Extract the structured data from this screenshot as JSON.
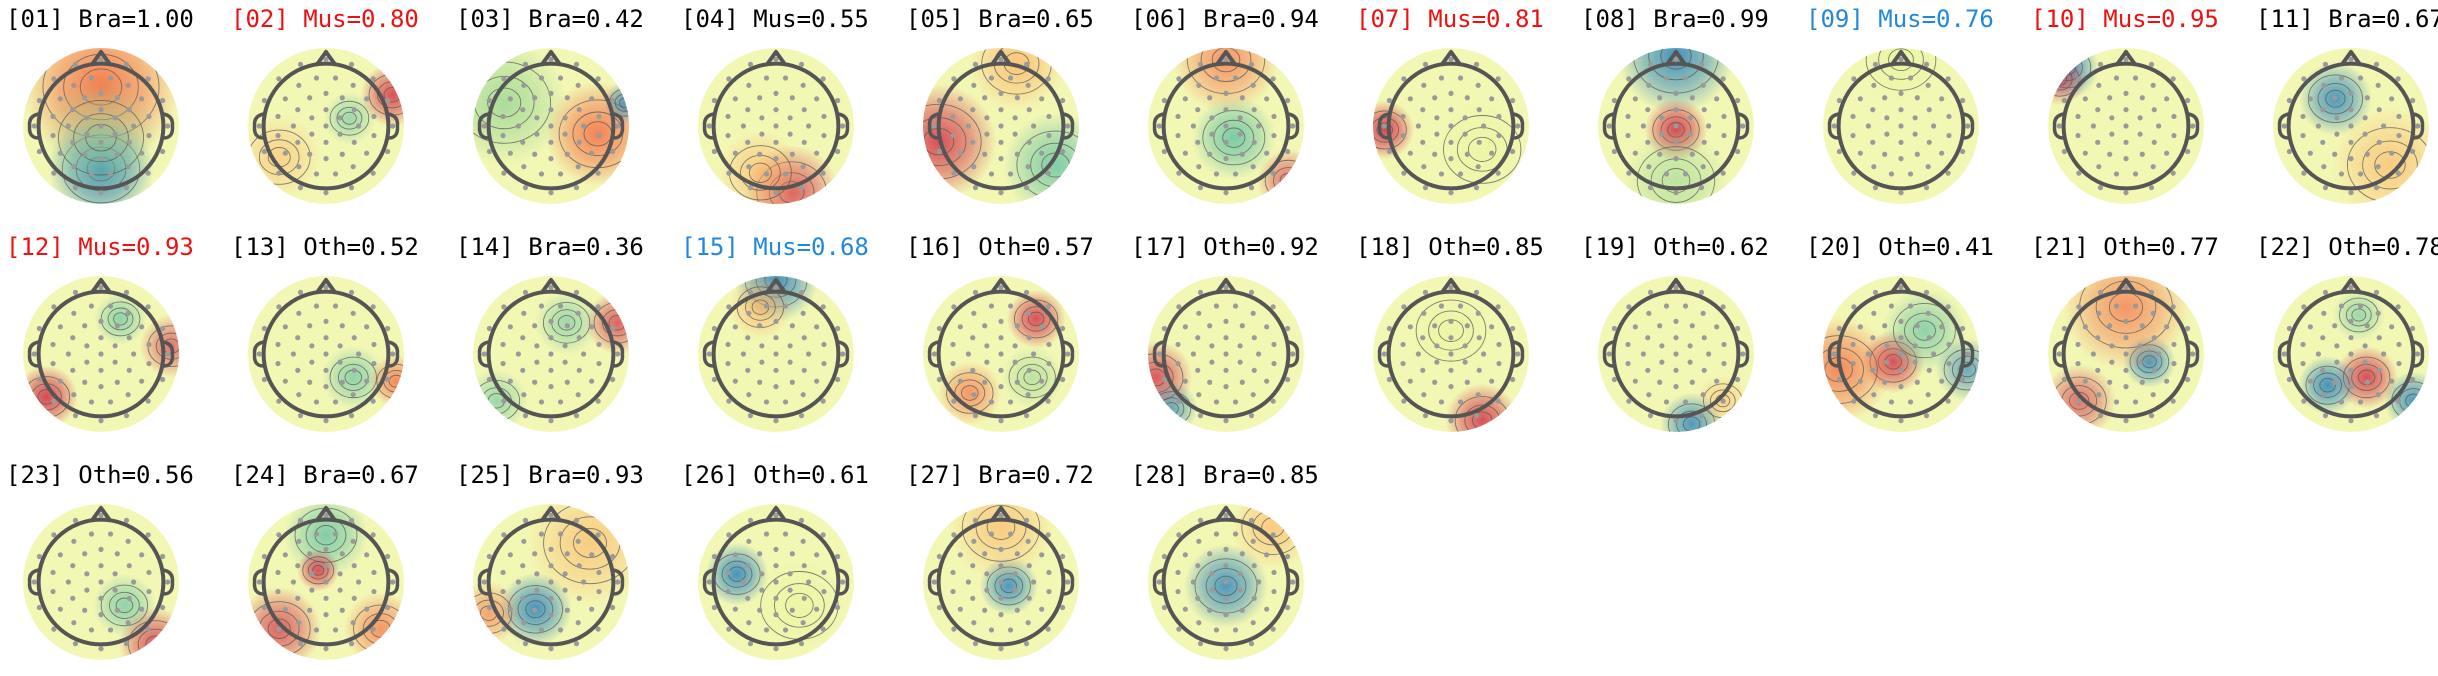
{
  "colors": {
    "default_label": "#000000",
    "highlight_red": "#ee1111",
    "highlight_blue": "#2288dd",
    "head_outline": "#555555",
    "electrode": "#9a9a9a",
    "contour": "#555555"
  },
  "components": [
    {
      "label": "[01] Bra=1.00",
      "category": "Bra",
      "score": 1.0,
      "highlight": "none",
      "map": [
        {
          "dx": 0,
          "dy": -0.5,
          "r": 0.75,
          "c": "#f46d43",
          "o": 0.9
        },
        {
          "dx": 0,
          "dy": 0.55,
          "r": 0.5,
          "c": "#3288bd",
          "o": 0.95
        },
        {
          "dx": 0,
          "dy": 0.15,
          "r": 0.55,
          "c": "#99d594",
          "o": 0.6
        }
      ]
    },
    {
      "label": "[02] Mus=0.80",
      "category": "Mus",
      "score": 0.8,
      "highlight": "red",
      "map": [
        {
          "dx": 0.85,
          "dy": -0.4,
          "r": 0.3,
          "c": "#d53e4f",
          "o": 0.9
        },
        {
          "dx": 0.3,
          "dy": -0.1,
          "r": 0.25,
          "c": "#66c2a5",
          "o": 0.6
        },
        {
          "dx": -0.6,
          "dy": 0.4,
          "r": 0.4,
          "c": "#fdae61",
          "o": 0.5
        }
      ]
    },
    {
      "label": "[03] Bra=0.42",
      "category": "Bra",
      "score": 0.42,
      "highlight": "none",
      "map": [
        {
          "dx": -0.6,
          "dy": -0.3,
          "r": 0.6,
          "c": "#99d594",
          "o": 0.8
        },
        {
          "dx": 0.6,
          "dy": 0.1,
          "r": 0.5,
          "c": "#f46d43",
          "o": 0.85
        },
        {
          "dx": 0.95,
          "dy": -0.3,
          "r": 0.2,
          "c": "#3288bd",
          "o": 0.8
        }
      ]
    },
    {
      "label": "[04] Mus=0.55",
      "category": "Mus",
      "score": 0.55,
      "highlight": "none",
      "map": [
        {
          "dx": 0.2,
          "dy": 0.85,
          "r": 0.45,
          "c": "#d53e4f",
          "o": 0.8
        },
        {
          "dx": -0.2,
          "dy": 0.6,
          "r": 0.4,
          "c": "#fdae61",
          "o": 0.6
        }
      ]
    },
    {
      "label": "[05] Bra=0.65",
      "category": "Bra",
      "score": 0.65,
      "highlight": "none",
      "map": [
        {
          "dx": -0.8,
          "dy": 0.2,
          "r": 0.55,
          "c": "#d53e4f",
          "o": 0.9
        },
        {
          "dx": 0.7,
          "dy": 0.5,
          "r": 0.5,
          "c": "#66c2a5",
          "o": 0.8
        },
        {
          "dx": 0.2,
          "dy": -0.8,
          "r": 0.45,
          "c": "#fdae61",
          "o": 0.7
        }
      ]
    },
    {
      "label": "[06] Bra=0.94",
      "category": "Bra",
      "score": 0.94,
      "highlight": "none",
      "map": [
        {
          "dx": 0.1,
          "dy": 0.15,
          "r": 0.4,
          "c": "#66c2a5",
          "o": 0.85
        },
        {
          "dx": 0,
          "dy": -0.85,
          "r": 0.5,
          "c": "#f46d43",
          "o": 0.7
        },
        {
          "dx": 0.8,
          "dy": 0.7,
          "r": 0.3,
          "c": "#d53e4f",
          "o": 0.7
        }
      ]
    },
    {
      "label": "[07] Mus=0.81",
      "category": "Mus",
      "score": 0.81,
      "highlight": "red",
      "map": [
        {
          "dx": -0.85,
          "dy": 0.05,
          "r": 0.28,
          "c": "#d53e4f",
          "o": 0.95
        },
        {
          "dx": 0.4,
          "dy": 0.3,
          "r": 0.5,
          "c": "#e6f598",
          "o": 0.5
        }
      ]
    },
    {
      "label": "[08] Bra=0.99",
      "category": "Bra",
      "score": 0.99,
      "highlight": "none",
      "map": [
        {
          "dx": 0,
          "dy": -0.9,
          "r": 0.55,
          "c": "#3288bd",
          "o": 0.9
        },
        {
          "dx": 0,
          "dy": 0.05,
          "r": 0.3,
          "c": "#d53e4f",
          "o": 0.95
        },
        {
          "dx": 0,
          "dy": 0.7,
          "r": 0.5,
          "c": "#99d594",
          "o": 0.6
        }
      ]
    },
    {
      "label": "[09] Mus=0.76",
      "category": "Mus",
      "score": 0.76,
      "highlight": "blue",
      "map": [
        {
          "dx": 0,
          "dy": -0.85,
          "r": 0.45,
          "c": "#e6f598",
          "o": 0.6
        }
      ]
    },
    {
      "label": "[10] Mus=0.95",
      "category": "Mus",
      "score": 0.95,
      "highlight": "red",
      "map": [
        {
          "dx": -0.75,
          "dy": -0.75,
          "r": 0.3,
          "c": "#3288bd",
          "o": 0.9
        },
        {
          "dx": -0.85,
          "dy": -0.6,
          "r": 0.25,
          "c": "#d53e4f",
          "o": 0.7
        }
      ]
    },
    {
      "label": "[11] Bra=0.67",
      "category": "Bra",
      "score": 0.67,
      "highlight": "none",
      "map": [
        {
          "dx": -0.2,
          "dy": -0.35,
          "r": 0.35,
          "c": "#3288bd",
          "o": 0.85
        },
        {
          "dx": 0.5,
          "dy": 0.5,
          "r": 0.55,
          "c": "#fdae61",
          "o": 0.6
        }
      ]
    },
    {
      "label": "[12] Mus=0.93",
      "category": "Mus",
      "score": 0.93,
      "highlight": "red",
      "map": [
        {
          "dx": -0.7,
          "dy": 0.55,
          "r": 0.3,
          "c": "#d53e4f",
          "o": 0.95
        },
        {
          "dx": 0.25,
          "dy": -0.45,
          "r": 0.25,
          "c": "#66c2a5",
          "o": 0.7
        },
        {
          "dx": 0.9,
          "dy": -0.1,
          "r": 0.3,
          "c": "#d53e4f",
          "o": 0.7
        }
      ]
    },
    {
      "label": "[13] Oth=0.52",
      "category": "Oth",
      "score": 0.52,
      "highlight": "none",
      "map": [
        {
          "dx": 0.35,
          "dy": 0.3,
          "r": 0.3,
          "c": "#66c2a5",
          "o": 0.7
        },
        {
          "dx": 0.9,
          "dy": 0.35,
          "r": 0.25,
          "c": "#f46d43",
          "o": 0.8
        }
      ]
    },
    {
      "label": "[14] Bra=0.36",
      "category": "Bra",
      "score": 0.36,
      "highlight": "none",
      "map": [
        {
          "dx": 0.2,
          "dy": -0.4,
          "r": 0.3,
          "c": "#66c2a5",
          "o": 0.6
        },
        {
          "dx": 0.85,
          "dy": -0.4,
          "r": 0.3,
          "c": "#d53e4f",
          "o": 0.8
        },
        {
          "dx": -0.7,
          "dy": 0.6,
          "r": 0.3,
          "c": "#66c2a5",
          "o": 0.6
        }
      ]
    },
    {
      "label": "[15] Mus=0.68",
      "category": "Mus",
      "score": 0.68,
      "highlight": "blue",
      "map": [
        {
          "dx": 0,
          "dy": -0.95,
          "r": 0.4,
          "c": "#3288bd",
          "o": 0.9
        },
        {
          "dx": -0.2,
          "dy": -0.6,
          "r": 0.3,
          "c": "#fdae61",
          "o": 0.7
        }
      ]
    },
    {
      "label": "[16] Oth=0.57",
      "category": "Oth",
      "score": 0.57,
      "highlight": "none",
      "map": [
        {
          "dx": 0.45,
          "dy": -0.45,
          "r": 0.28,
          "c": "#d53e4f",
          "o": 0.9
        },
        {
          "dx": -0.4,
          "dy": 0.5,
          "r": 0.3,
          "c": "#f46d43",
          "o": 0.7
        },
        {
          "dx": 0.4,
          "dy": 0.3,
          "r": 0.3,
          "c": "#99d594",
          "o": 0.6
        }
      ]
    },
    {
      "label": "[17] Oth=0.92",
      "category": "Oth",
      "score": 0.92,
      "highlight": "none",
      "map": [
        {
          "dx": -0.9,
          "dy": 0.3,
          "r": 0.35,
          "c": "#d53e4f",
          "o": 0.85
        },
        {
          "dx": -0.7,
          "dy": 0.7,
          "r": 0.25,
          "c": "#3288bd",
          "o": 0.7
        }
      ]
    },
    {
      "label": "[18] Oth=0.85",
      "category": "Oth",
      "score": 0.85,
      "highlight": "none",
      "map": [
        {
          "dx": 0.4,
          "dy": 0.85,
          "r": 0.35,
          "c": "#d53e4f",
          "o": 0.9
        },
        {
          "dx": 0,
          "dy": -0.3,
          "r": 0.45,
          "c": "#e6f598",
          "o": 0.5
        }
      ]
    },
    {
      "label": "[19] Oth=0.62",
      "category": "Oth",
      "score": 0.62,
      "highlight": "none",
      "map": [
        {
          "dx": 0.2,
          "dy": 0.9,
          "r": 0.3,
          "c": "#3288bd",
          "o": 0.85
        },
        {
          "dx": 0.6,
          "dy": 0.6,
          "r": 0.25,
          "c": "#fdae61",
          "o": 0.5
        }
      ]
    },
    {
      "label": "[20] Oth=0.41",
      "category": "Oth",
      "score": 0.41,
      "highlight": "none",
      "map": [
        {
          "dx": -0.1,
          "dy": 0.1,
          "r": 0.3,
          "c": "#d53e4f",
          "o": 0.9
        },
        {
          "dx": 0.3,
          "dy": -0.3,
          "r": 0.4,
          "c": "#66c2a5",
          "o": 0.7
        },
        {
          "dx": -0.8,
          "dy": 0.2,
          "r": 0.5,
          "c": "#f46d43",
          "o": 0.8
        },
        {
          "dx": 0.85,
          "dy": 0.2,
          "r": 0.3,
          "c": "#3288bd",
          "o": 0.7
        }
      ]
    },
    {
      "label": "[21] Oth=0.77",
      "category": "Oth",
      "score": 0.77,
      "highlight": "none",
      "map": [
        {
          "dx": 0.3,
          "dy": 0.1,
          "r": 0.25,
          "c": "#3288bd",
          "o": 0.85
        },
        {
          "dx": 0,
          "dy": -0.6,
          "r": 0.6,
          "c": "#f46d43",
          "o": 0.7
        },
        {
          "dx": -0.6,
          "dy": 0.6,
          "r": 0.35,
          "c": "#d53e4f",
          "o": 0.7
        }
      ]
    },
    {
      "label": "[22] Oth=0.78",
      "category": "Oth",
      "score": 0.78,
      "highlight": "none",
      "map": [
        {
          "dx": 0.2,
          "dy": 0.3,
          "r": 0.3,
          "c": "#d53e4f",
          "o": 0.9
        },
        {
          "dx": -0.3,
          "dy": 0.4,
          "r": 0.28,
          "c": "#3288bd",
          "o": 0.9
        },
        {
          "dx": 0.8,
          "dy": 0.6,
          "r": 0.28,
          "c": "#3288bd",
          "o": 0.85
        },
        {
          "dx": 0.1,
          "dy": -0.5,
          "r": 0.25,
          "c": "#66c2a5",
          "o": 0.6
        }
      ]
    },
    {
      "label": "[23] Oth=0.56",
      "category": "Oth",
      "score": 0.56,
      "highlight": "none",
      "map": [
        {
          "dx": 0.3,
          "dy": 0.3,
          "r": 0.3,
          "c": "#66c2a5",
          "o": 0.7
        },
        {
          "dx": 0.7,
          "dy": 0.8,
          "r": 0.35,
          "c": "#d53e4f",
          "o": 0.85
        }
      ]
    },
    {
      "label": "[24] Bra=0.67",
      "category": "Bra",
      "score": 0.67,
      "highlight": "none",
      "map": [
        {
          "dx": 0,
          "dy": -0.6,
          "r": 0.4,
          "c": "#66c2a5",
          "o": 0.8
        },
        {
          "dx": -0.1,
          "dy": -0.15,
          "r": 0.2,
          "c": "#d53e4f",
          "o": 0.9
        },
        {
          "dx": -0.6,
          "dy": 0.6,
          "r": 0.4,
          "c": "#d53e4f",
          "o": 0.8
        },
        {
          "dx": 0.7,
          "dy": 0.6,
          "r": 0.35,
          "c": "#f46d43",
          "o": 0.7
        }
      ]
    },
    {
      "label": "[25] Bra=0.93",
      "category": "Bra",
      "score": 0.93,
      "highlight": "none",
      "map": [
        {
          "dx": -0.2,
          "dy": 0.35,
          "r": 0.35,
          "c": "#3288bd",
          "o": 0.9
        },
        {
          "dx": 0.5,
          "dy": -0.5,
          "r": 0.6,
          "c": "#fdae61",
          "o": 0.6
        },
        {
          "dx": -0.8,
          "dy": 0.4,
          "r": 0.3,
          "c": "#f46d43",
          "o": 0.6
        }
      ]
    },
    {
      "label": "[26] Oth=0.61",
      "category": "Oth",
      "score": 0.61,
      "highlight": "none",
      "map": [
        {
          "dx": -0.5,
          "dy": -0.1,
          "r": 0.3,
          "c": "#3288bd",
          "o": 0.9
        },
        {
          "dx": 0.3,
          "dy": 0.3,
          "r": 0.5,
          "c": "#e6f598",
          "o": 0.5
        }
      ]
    },
    {
      "label": "[27] Bra=0.72",
      "category": "Bra",
      "score": 0.72,
      "highlight": "none",
      "map": [
        {
          "dx": 0.1,
          "dy": 0.05,
          "r": 0.28,
          "c": "#3288bd",
          "o": 0.85
        },
        {
          "dx": 0,
          "dy": -0.7,
          "r": 0.5,
          "c": "#fdae61",
          "o": 0.6
        }
      ]
    },
    {
      "label": "[28] Bra=0.85",
      "category": "Bra",
      "score": 0.85,
      "highlight": "none",
      "map": [
        {
          "dx": 0,
          "dy": 0.05,
          "r": 0.4,
          "c": "#3288bd",
          "o": 0.85
        },
        {
          "dx": 0.6,
          "dy": -0.7,
          "r": 0.4,
          "c": "#fdae61",
          "o": 0.6
        }
      ]
    }
  ]
}
